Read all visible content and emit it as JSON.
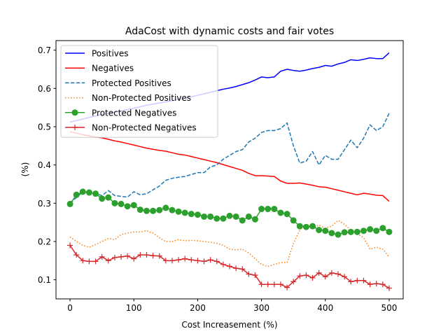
{
  "chart_data": {
    "type": "line",
    "title": "AdaCost with dynamic costs and fair votes",
    "xlabel": "Cost Increasement (%)",
    "ylabel": "(%)",
    "xlim": [
      -22,
      522
    ],
    "ylim": [
      0.05,
      0.725
    ],
    "xticks": [
      0,
      100,
      200,
      300,
      400,
      500
    ],
    "xtick_labels": [
      "0",
      "100",
      "200",
      "300",
      "400",
      "500"
    ],
    "yticks": [
      0.1,
      0.2,
      0.3,
      0.4,
      0.5,
      0.6,
      0.7
    ],
    "ytick_labels": [
      "0.1",
      "0.2",
      "0.3",
      "0.4",
      "0.5",
      "0.6",
      "0.7"
    ],
    "grid": false,
    "legend_position": "upper-left",
    "x": [
      0,
      10,
      20,
      30,
      40,
      50,
      60,
      70,
      80,
      90,
      100,
      110,
      120,
      130,
      140,
      150,
      160,
      170,
      180,
      190,
      200,
      210,
      220,
      230,
      240,
      250,
      260,
      270,
      280,
      290,
      300,
      310,
      320,
      330,
      340,
      350,
      360,
      370,
      380,
      390,
      400,
      410,
      420,
      430,
      440,
      450,
      460,
      470,
      480,
      490,
      500
    ],
    "series": [
      {
        "name": "Positives",
        "color": "#0000ff",
        "linestyle": "solid",
        "marker": "none",
        "values": [
          0.512,
          0.516,
          0.52,
          0.524,
          0.528,
          0.532,
          0.535,
          0.538,
          0.541,
          0.545,
          0.548,
          0.552,
          0.556,
          0.559,
          0.562,
          0.565,
          0.568,
          0.572,
          0.575,
          0.578,
          0.582,
          0.586,
          0.59,
          0.594,
          0.598,
          0.601,
          0.605,
          0.61,
          0.615,
          0.622,
          0.63,
          0.628,
          0.63,
          0.645,
          0.65,
          0.647,
          0.645,
          0.648,
          0.652,
          0.655,
          0.66,
          0.658,
          0.664,
          0.668,
          0.675,
          0.673,
          0.676,
          0.68,
          0.678,
          0.678,
          0.693
        ]
      },
      {
        "name": "Negatives",
        "color": "#ff0000",
        "linestyle": "solid",
        "marker": "none",
        "values": [
          0.487,
          0.483,
          0.479,
          0.476,
          0.473,
          0.471,
          0.467,
          0.463,
          0.46,
          0.456,
          0.452,
          0.448,
          0.444,
          0.441,
          0.438,
          0.436,
          0.432,
          0.428,
          0.426,
          0.422,
          0.418,
          0.414,
          0.41,
          0.406,
          0.401,
          0.396,
          0.391,
          0.386,
          0.378,
          0.372,
          0.372,
          0.371,
          0.37,
          0.358,
          0.352,
          0.352,
          0.353,
          0.35,
          0.347,
          0.343,
          0.342,
          0.338,
          0.334,
          0.33,
          0.326,
          0.322,
          0.326,
          0.324,
          0.321,
          0.32,
          0.305
        ]
      },
      {
        "name": "Protected Positives",
        "color": "#1f77b4",
        "linestyle": "dashed",
        "marker": "none",
        "values": [
          0.3,
          0.315,
          0.33,
          0.328,
          0.325,
          0.32,
          0.333,
          0.32,
          0.318,
          0.316,
          0.33,
          0.322,
          0.325,
          0.335,
          0.345,
          0.36,
          0.365,
          0.368,
          0.37,
          0.375,
          0.38,
          0.38,
          0.395,
          0.4,
          0.415,
          0.425,
          0.435,
          0.44,
          0.46,
          0.47,
          0.485,
          0.49,
          0.49,
          0.495,
          0.51,
          0.45,
          0.405,
          0.41,
          0.435,
          0.4,
          0.425,
          0.415,
          0.415,
          0.44,
          0.465,
          0.445,
          0.47,
          0.505,
          0.49,
          0.5,
          0.535
        ]
      },
      {
        "name": "Non-Protected Positives",
        "color": "#ff7f0e",
        "linestyle": "dotted",
        "marker": "none",
        "values": [
          0.212,
          0.2,
          0.19,
          0.185,
          0.192,
          0.2,
          0.208,
          0.205,
          0.218,
          0.222,
          0.225,
          0.225,
          0.228,
          0.222,
          0.21,
          0.2,
          0.2,
          0.205,
          0.202,
          0.203,
          0.202,
          0.2,
          0.198,
          0.195,
          0.19,
          0.18,
          0.178,
          0.18,
          0.17,
          0.155,
          0.14,
          0.135,
          0.14,
          0.145,
          0.145,
          0.195,
          0.23,
          0.245,
          0.235,
          0.243,
          0.235,
          0.24,
          0.255,
          0.245,
          0.23,
          0.22,
          0.21,
          0.18,
          0.185,
          0.18,
          0.16
        ]
      },
      {
        "name": "Protected Negatives",
        "color": "#2ca02c",
        "linestyle": "solid",
        "marker": "circle",
        "values": [
          0.298,
          0.322,
          0.33,
          0.328,
          0.325,
          0.312,
          0.315,
          0.3,
          0.298,
          0.292,
          0.295,
          0.283,
          0.28,
          0.28,
          0.282,
          0.288,
          0.282,
          0.278,
          0.275,
          0.272,
          0.27,
          0.265,
          0.265,
          0.26,
          0.26,
          0.267,
          0.265,
          0.255,
          0.265,
          0.258,
          0.285,
          0.285,
          0.285,
          0.275,
          0.272,
          0.255,
          0.24,
          0.238,
          0.24,
          0.23,
          0.228,
          0.222,
          0.218,
          0.224,
          0.225,
          0.225,
          0.228,
          0.232,
          0.228,
          0.235,
          0.225
        ]
      },
      {
        "name": "Non-Protected Negatives",
        "color": "#d62728",
        "linestyle": "solid",
        "marker": "plus",
        "values": [
          0.19,
          0.165,
          0.15,
          0.148,
          0.148,
          0.16,
          0.15,
          0.158,
          0.16,
          0.162,
          0.155,
          0.165,
          0.165,
          0.163,
          0.162,
          0.15,
          0.15,
          0.152,
          0.155,
          0.152,
          0.15,
          0.148,
          0.152,
          0.148,
          0.14,
          0.135,
          0.13,
          0.128,
          0.115,
          0.112,
          0.088,
          0.088,
          0.088,
          0.088,
          0.08,
          0.095,
          0.11,
          0.112,
          0.105,
          0.118,
          0.108,
          0.118,
          0.115,
          0.108,
          0.095,
          0.098,
          0.098,
          0.088,
          0.09,
          0.088,
          0.078
        ]
      }
    ]
  }
}
